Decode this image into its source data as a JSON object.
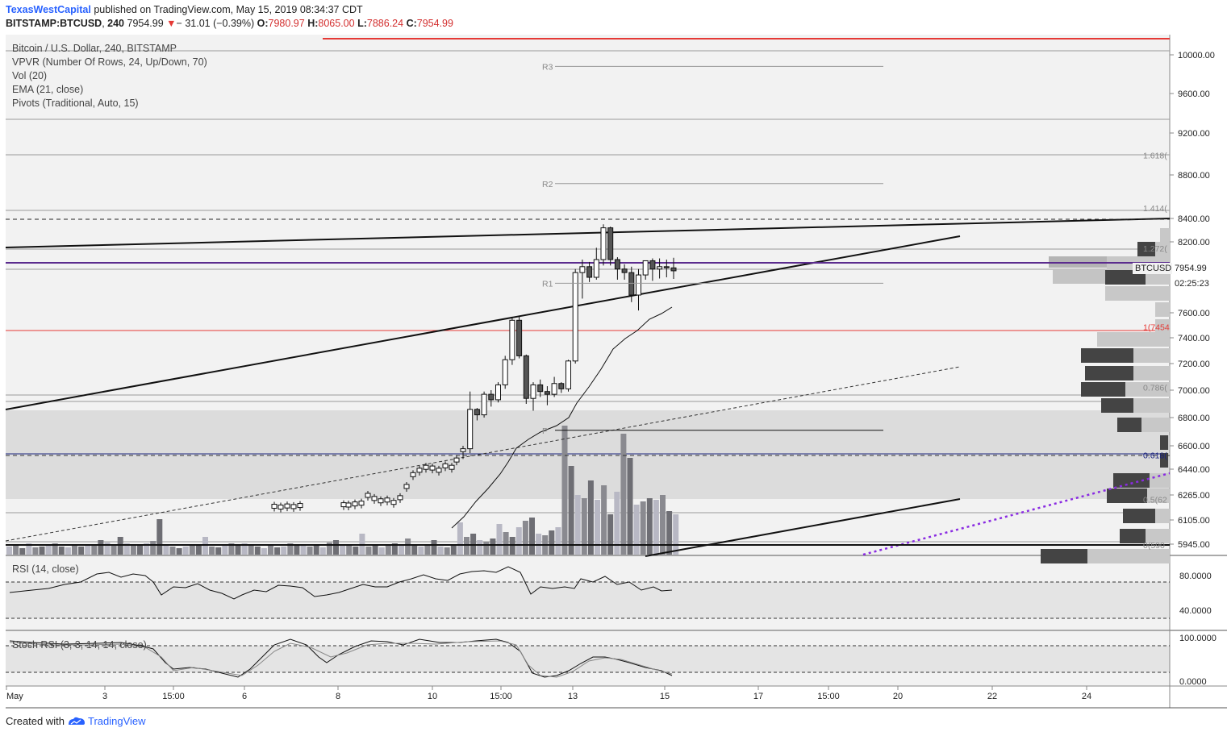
{
  "header": {
    "author": "TexasWestCapital",
    "published_text": "published on TradingView.com, May 15, 2019 08:34:37 CDT",
    "symbol": "BITSTAMP:BTCUSD",
    "interval": "240",
    "last": "7954.99",
    "change": "− 31.01 (−0.39%)",
    "open_label": "O:",
    "open": "7980.97",
    "high_label": "H:",
    "high": "8065.00",
    "low_label": "L:",
    "low": "7886.24",
    "close_label": "C:",
    "close": "7954.99"
  },
  "legend": {
    "title": "Bitcoin / U.S. Dollar, 240, BITSTAMP",
    "vpvr": "VPVR (Number Of Rows, 24, Up/Down, 70)",
    "vol": "Vol (20)",
    "ema": "EMA (21, close)",
    "pivots": "Pivots (Traditional, Auto, 15)"
  },
  "rsi_label": "RSI (14, close)",
  "stoch_label": "Stoch RSI (3, 3, 14, 14, close)",
  "price_tag": {
    "symbol": "BTCUSD",
    "price": "7954.99",
    "countdown": "02:25:23"
  },
  "footer": {
    "created_with": "Created with",
    "brand": "TradingView"
  },
  "colors": {
    "accent": "#2962ff",
    "down": "#e53935",
    "purple": "#7b2fd0",
    "red_line": "#e53935"
  },
  "chart_data": {
    "type": "candlestick",
    "title": "Bitcoin / U.S. Dollar, 240, BITSTAMP",
    "price_axis_ticks": [
      10000,
      9600,
      9200,
      8800,
      8400,
      8200,
      7600,
      7400,
      7200,
      7000,
      6800,
      6600,
      6440,
      6265,
      6105,
      5945
    ],
    "price_axis_labels": [
      "10000.00",
      "9600.00",
      "9200.00",
      "8800.00",
      "8400.00",
      "8200.00",
      "7600.00",
      "7400.00",
      "7200.00",
      "7000.00",
      "6800.00",
      "6600.00",
      "6440.00",
      "6265.00",
      "6105.00",
      "5945.00"
    ],
    "x_axis_labels": [
      "May",
      "3",
      "15:00",
      "6",
      "8",
      "10",
      "15:00",
      "13",
      "15",
      "17",
      "15:00",
      "20",
      "22",
      "24"
    ],
    "pivots": [
      {
        "label": "R3",
        "value": 9880
      },
      {
        "label": "R2",
        "value": 8720
      },
      {
        "label": "R1",
        "value": 7850
      },
      {
        "label": "P",
        "value": 6710
      }
    ],
    "fib_levels": [
      {
        "label": "1.618(",
        "value": 8950
      },
      {
        "label": "1.414(",
        "value": 8460
      },
      {
        "label": "1.272(",
        "value": 8110
      },
      {
        "label": "1(7454",
        "value": 7454
      },
      {
        "label": "0.786(",
        "value": 6990
      },
      {
        "label": "0.618(",
        "value": 6510
      },
      {
        "label": "0.5(62",
        "value": 6210
      },
      {
        "label": "0(590",
        "value": 5900
      }
    ],
    "candles": [
      [
        6560,
        6600,
        6510,
        6580
      ],
      [
        6580,
        6990,
        6550,
        6860
      ],
      [
        6860,
        6870,
        6780,
        6820
      ],
      [
        6820,
        6990,
        6800,
        6970
      ],
      [
        6970,
        7000,
        6880,
        6930
      ],
      [
        6930,
        7060,
        6910,
        7040
      ],
      [
        7040,
        7260,
        7010,
        7230
      ],
      [
        7230,
        7560,
        7190,
        7540
      ],
      [
        7540,
        7570,
        7240,
        7260
      ],
      [
        7260,
        7270,
        6900,
        6940
      ],
      [
        6940,
        7060,
        6850,
        7040
      ],
      [
        7040,
        7080,
        6950,
        6990
      ],
      [
        6990,
        7030,
        6890,
        6970
      ],
      [
        6970,
        7100,
        6950,
        7050
      ],
      [
        7050,
        7060,
        6980,
        7010
      ],
      [
        7010,
        7230,
        6990,
        7220
      ],
      [
        7220,
        7970,
        7200,
        7940
      ],
      [
        7940,
        8050,
        7720,
        7990
      ],
      [
        7990,
        8030,
        7860,
        7900
      ],
      [
        7900,
        8150,
        7880,
        8050
      ],
      [
        8050,
        8350,
        8000,
        8320
      ],
      [
        8320,
        8330,
        8000,
        8050
      ],
      [
        8050,
        8070,
        7880,
        7970
      ],
      [
        7970,
        8010,
        7880,
        7940
      ],
      [
        7940,
        7990,
        7690,
        7750
      ],
      [
        7750,
        7970,
        7620,
        7920
      ],
      [
        7920,
        8040,
        7880,
        8040
      ],
      [
        8040,
        8060,
        7870,
        7970
      ],
      [
        7970,
        8060,
        7890,
        7990
      ],
      [
        7990,
        8050,
        7900,
        7980
      ],
      [
        7980,
        8065,
        7886,
        7955
      ]
    ],
    "current_price": 7954.99
  }
}
